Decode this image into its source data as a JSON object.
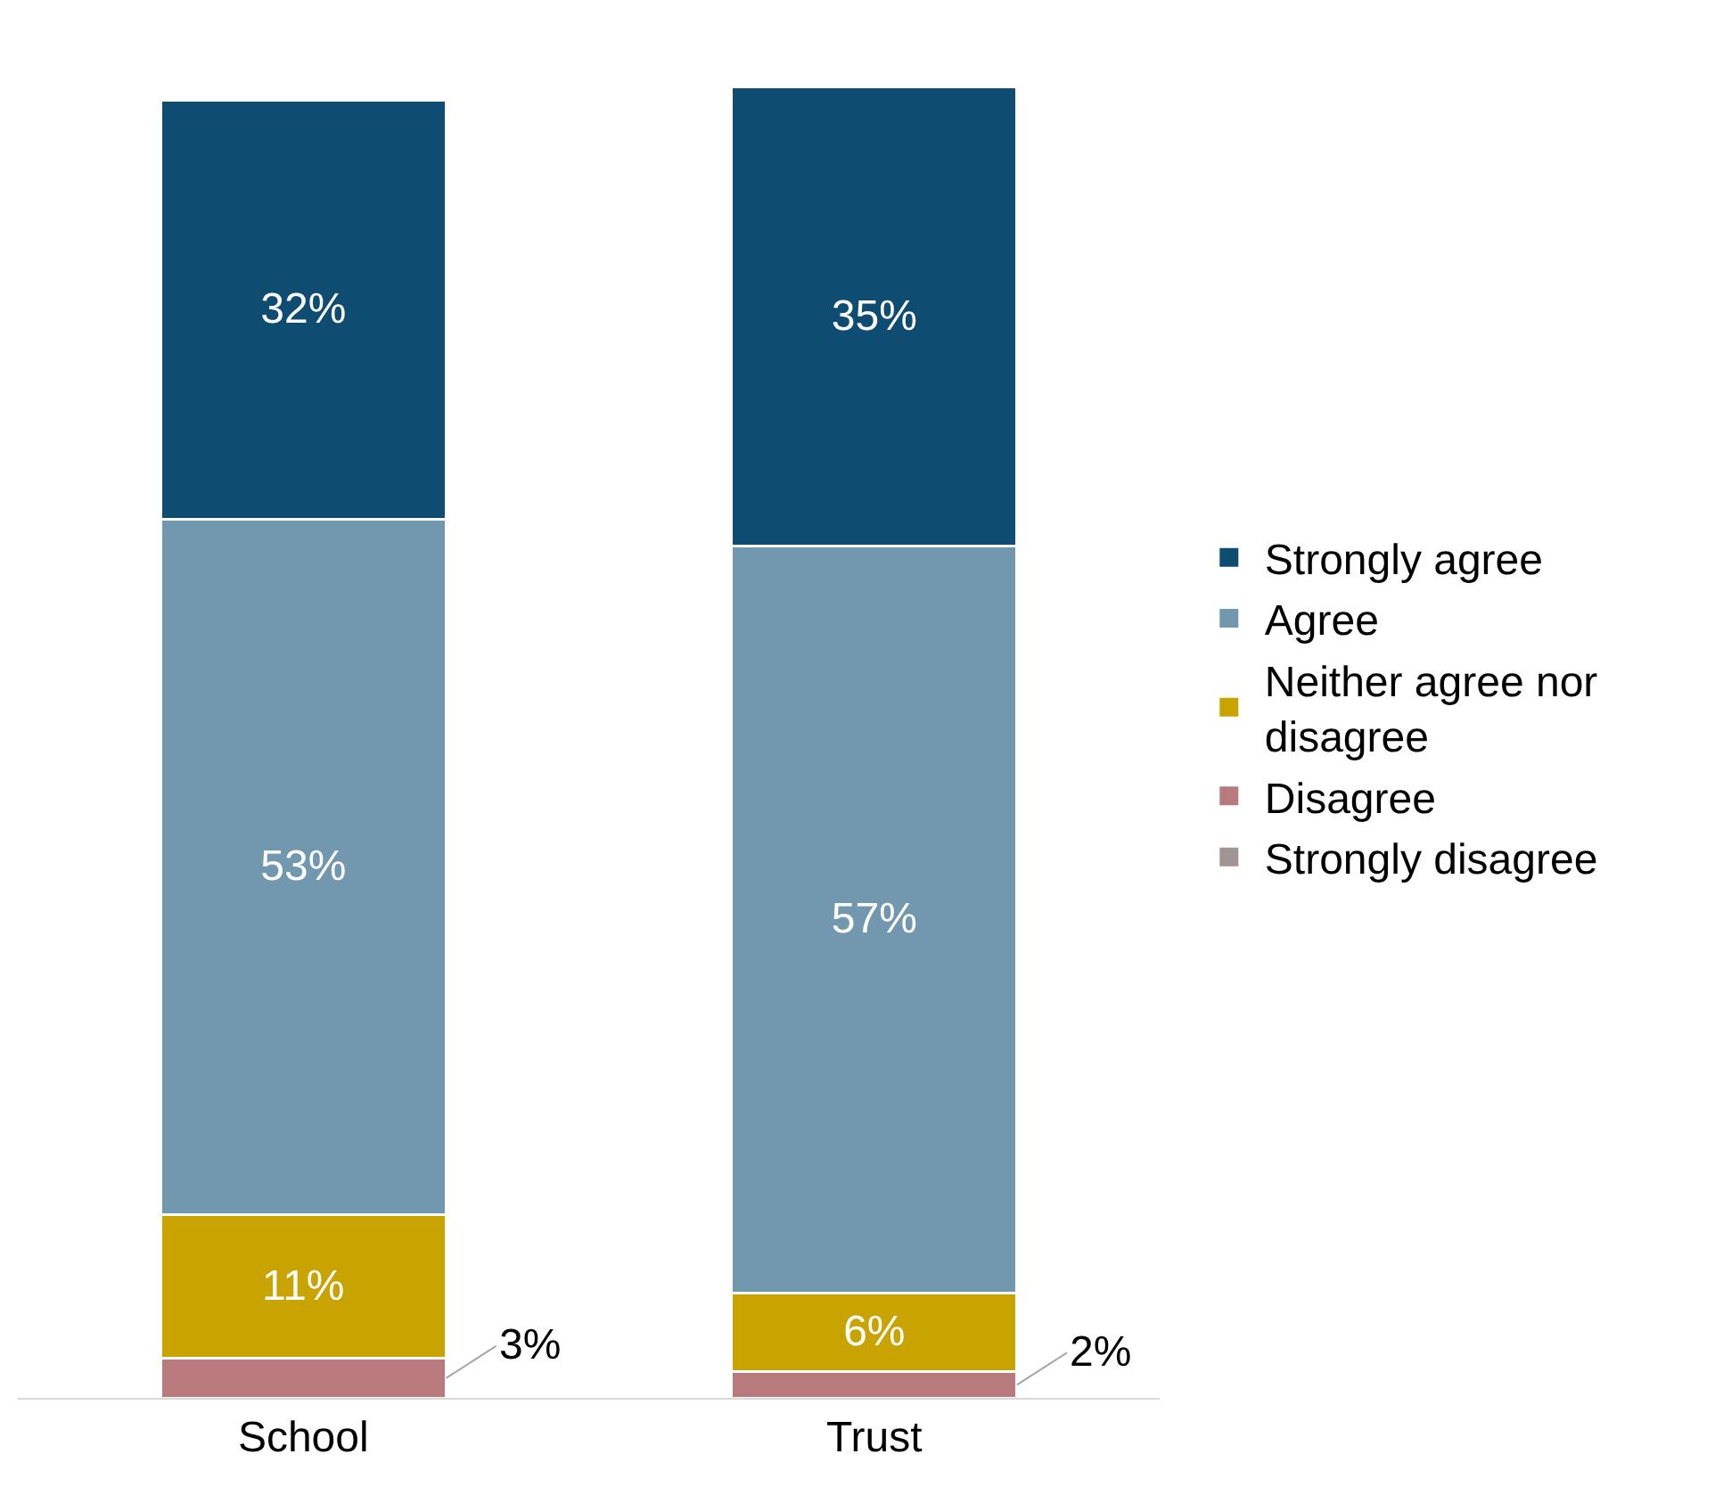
{
  "chart_data": {
    "type": "bar",
    "stacked": true,
    "categories": [
      "School",
      "Trust"
    ],
    "tick_labels": "x",
    "legend": "right",
    "series": [
      {
        "name": "Strongly disagree",
        "color": "#a09494",
        "values": [
          0,
          0
        ],
        "value_labels": [
          null,
          null
        ]
      },
      {
        "name": "Disagree",
        "color": "#b97a7d",
        "values": [
          3,
          2
        ],
        "value_labels": [
          "3%",
          "2%"
        ]
      },
      {
        "name": "Neither agree nor disagree",
        "color": "#c9a300",
        "values": [
          11,
          6
        ],
        "value_labels": [
          "11%",
          "6%"
        ]
      },
      {
        "name": "Agree",
        "color": "#7298b0",
        "values": [
          53,
          57
        ],
        "value_labels": [
          "53%",
          "57%"
        ]
      },
      {
        "name": "Strongly agree",
        "color": "#0f4c72",
        "values": [
          32,
          35
        ],
        "value_labels": [
          "32%",
          "35%"
        ]
      }
    ]
  }
}
